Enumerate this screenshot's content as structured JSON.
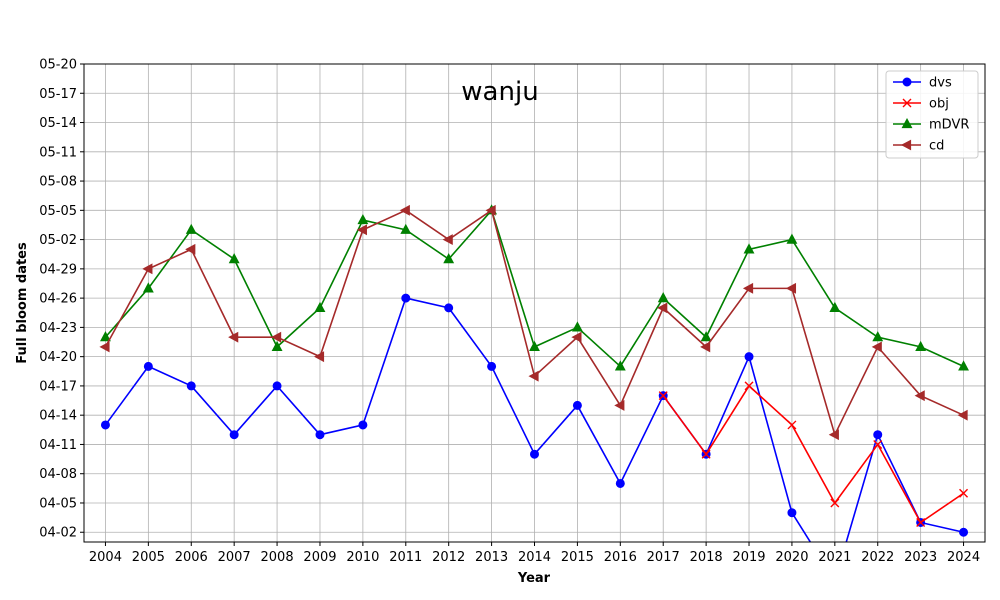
{
  "chart_data": {
    "type": "line",
    "title": "wanju",
    "xlabel": "Year",
    "ylabel": "Full bloom dates",
    "x": [
      2004,
      2005,
      2006,
      2007,
      2008,
      2009,
      2010,
      2011,
      2012,
      2013,
      2014,
      2015,
      2016,
      2017,
      2018,
      2019,
      2020,
      2021,
      2022,
      2023,
      2024
    ],
    "x_tick_labels": [
      "2004",
      "2005",
      "2006",
      "2007",
      "2008",
      "2009",
      "2010",
      "2011",
      "2012",
      "2013",
      "2014",
      "2015",
      "2016",
      "2017",
      "2018",
      "2019",
      "2020",
      "2021",
      "2022",
      "2023",
      "2024"
    ],
    "y_tick_labels": [
      "04-02",
      "04-05",
      "04-08",
      "04-11",
      "04-14",
      "04-17",
      "04-20",
      "04-23",
      "04-26",
      "04-29",
      "05-02",
      "05-05",
      "05-08",
      "05-11",
      "05-14",
      "05-17",
      "05-20"
    ],
    "ylim": [
      "04-01",
      "05-20"
    ],
    "grid": true,
    "legend_position": "top-right",
    "series": [
      {
        "name": "dvs",
        "color": "#0000ff",
        "marker": "circle",
        "x": [
          2004,
          2005,
          2006,
          2007,
          2008,
          2009,
          2010,
          2011,
          2012,
          2013,
          2014,
          2015,
          2016,
          2017,
          2018,
          2019,
          2020,
          2021,
          2022,
          2023,
          2024
        ],
        "values": [
          "04-13",
          "04-19",
          "04-17",
          "04-12",
          "04-17",
          "04-12",
          "04-13",
          "04-26",
          "04-25",
          "04-19",
          "04-10",
          "04-15",
          "04-07",
          "04-16",
          "04-10",
          "04-20",
          "04-04",
          "03-28",
          "04-12",
          "04-03",
          "04-02"
        ]
      },
      {
        "name": "obj",
        "color": "#ff0000",
        "marker": "x",
        "x": [
          2017,
          2018,
          2019,
          2020,
          2021,
          2022,
          2023,
          2024
        ],
        "values": [
          "04-16",
          "04-10",
          "04-17",
          "04-13",
          "04-05",
          "04-11",
          "04-03",
          "04-06"
        ]
      },
      {
        "name": "mDVR",
        "color": "#008000",
        "marker": "triangle-up",
        "x": [
          2004,
          2005,
          2006,
          2007,
          2008,
          2009,
          2010,
          2011,
          2012,
          2013,
          2014,
          2015,
          2016,
          2017,
          2018,
          2019,
          2020,
          2021,
          2022,
          2023,
          2024
        ],
        "values": [
          "04-22",
          "04-27",
          "05-03",
          "04-30",
          "04-21",
          "04-25",
          "05-04",
          "05-03",
          "04-30",
          "05-05",
          "04-21",
          "04-23",
          "04-19",
          "04-26",
          "04-22",
          "05-01",
          "05-02",
          "04-25",
          "04-22",
          "04-21",
          "04-19"
        ]
      },
      {
        "name": "cd",
        "color": "#a52a2a",
        "marker": "triangle-left",
        "x": [
          2004,
          2005,
          2006,
          2007,
          2008,
          2009,
          2010,
          2011,
          2012,
          2013,
          2014,
          2015,
          2016,
          2017,
          2018,
          2019,
          2020,
          2021,
          2022,
          2023,
          2024
        ],
        "values": [
          "04-21",
          "04-29",
          "05-01",
          "04-22",
          "04-22",
          "04-20",
          "05-03",
          "05-05",
          "05-02",
          "05-05",
          "04-18",
          "04-22",
          "04-15",
          "04-25",
          "04-21",
          "04-27",
          "04-27",
          "04-12",
          "04-21",
          "04-16",
          "04-14"
        ]
      }
    ]
  }
}
